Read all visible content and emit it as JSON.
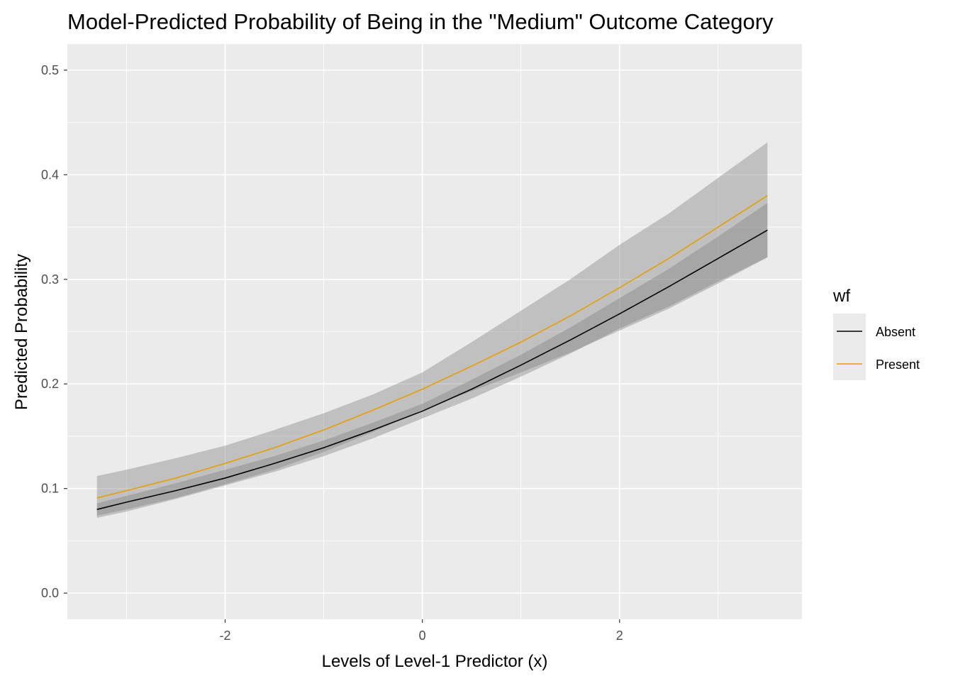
{
  "chart_data": {
    "type": "line",
    "title": "Model-Predicted Probability of Being in the \"Medium\" Outcome Category",
    "xlabel": "Levels of Level-1 Predictor (x)",
    "ylabel": "Predicted Probability",
    "xlim": [
      -3.6,
      3.85
    ],
    "ylim": [
      -0.025,
      0.525
    ],
    "x_ticks": [
      -2,
      0,
      2
    ],
    "x_tick_labels": [
      "-2",
      "0",
      "2"
    ],
    "y_ticks": [
      0.0,
      0.1,
      0.2,
      0.3,
      0.4,
      0.5
    ],
    "y_tick_labels": [
      "0.0",
      "0.1",
      "0.2",
      "0.3",
      "0.4",
      "0.5"
    ],
    "grid": true,
    "legend": {
      "title": "wf",
      "position": "right",
      "entries": [
        "Absent",
        "Present"
      ]
    },
    "colors": {
      "panel": "#ebebeb",
      "grid": "#ffffff",
      "ribbon": "#7f7f7f",
      "Absent": "#000000",
      "Present": "#e69f00"
    },
    "x": [
      -3.3,
      -3.0,
      -2.5,
      -2.0,
      -1.5,
      -1.0,
      -0.5,
      0.0,
      0.5,
      1.0,
      1.5,
      2.0,
      2.5,
      3.0,
      3.5
    ],
    "series": [
      {
        "name": "Absent",
        "values": [
          0.08,
          0.087,
          0.098,
          0.11,
          0.124,
          0.139,
          0.156,
          0.174,
          0.195,
          0.218,
          0.242,
          0.267,
          0.293,
          0.32,
          0.347
        ],
        "lower": [
          0.072,
          0.078,
          0.09,
          0.103,
          0.116,
          0.131,
          0.148,
          0.167,
          0.186,
          0.207,
          0.229,
          0.253,
          0.274,
          0.298,
          0.321
        ],
        "upper": [
          0.086,
          0.093,
          0.105,
          0.118,
          0.131,
          0.146,
          0.163,
          0.181,
          0.204,
          0.228,
          0.254,
          0.282,
          0.31,
          0.341,
          0.373
        ]
      },
      {
        "name": "Present",
        "values": [
          0.091,
          0.098,
          0.11,
          0.124,
          0.139,
          0.156,
          0.175,
          0.195,
          0.217,
          0.24,
          0.265,
          0.292,
          0.32,
          0.35,
          0.38
        ],
        "lower": [
          0.074,
          0.08,
          0.091,
          0.104,
          0.118,
          0.135,
          0.154,
          0.175,
          0.193,
          0.211,
          0.23,
          0.251,
          0.272,
          0.296,
          0.321
        ],
        "upper": [
          0.112,
          0.118,
          0.129,
          0.141,
          0.156,
          0.172,
          0.19,
          0.211,
          0.24,
          0.27,
          0.3,
          0.333,
          0.363,
          0.397,
          0.431
        ]
      }
    ]
  }
}
